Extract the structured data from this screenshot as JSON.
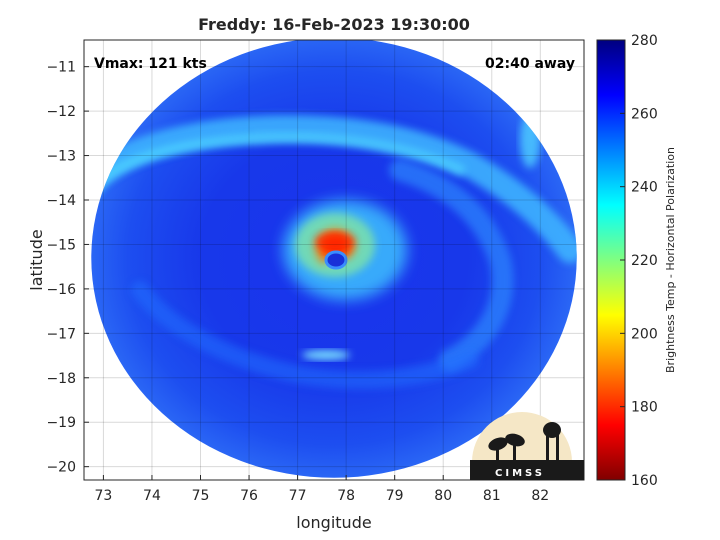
{
  "chart_data": {
    "type": "heatmap",
    "title": "Freddy: 16-Feb-2023 19:30:00",
    "xlabel": "longitude",
    "ylabel": "latitude",
    "xlim": [
      72.6,
      82.9
    ],
    "ylim": [
      -20.3,
      -10.4
    ],
    "x_ticks": [
      73,
      74,
      75,
      76,
      77,
      78,
      79,
      80,
      81,
      82
    ],
    "y_ticks": [
      -11,
      -12,
      -13,
      -14,
      -15,
      -16,
      -17,
      -18,
      -19,
      -20
    ],
    "grid": true,
    "swath_center": [
      77.75,
      -15.3
    ],
    "swath_radius_deg": [
      5.0,
      4.95
    ],
    "annotations": {
      "vmax": "Vmax: 121 kts",
      "time_offset": "02:40 away"
    },
    "colorbar": {
      "label": "Brightness Temp - Horizontal Polarization",
      "range": [
        160,
        280
      ],
      "ticks": [
        280,
        260,
        240,
        220,
        200,
        180,
        160
      ],
      "colormap": "jet",
      "placement": "right"
    },
    "features": {
      "eye_center": [
        77.8,
        -15.25
      ],
      "eye_tb": 255,
      "eyewall_min_tb": 175,
      "background_tb": 262
    }
  },
  "logo": {
    "text": "CIMSS"
  },
  "colors": {
    "jet_stops": [
      "#000080",
      "#0000ff",
      "#0080ff",
      "#00ffff",
      "#80ff80",
      "#ffff00",
      "#ff8000",
      "#ff0000",
      "#800000"
    ],
    "logo_bg": "#f5e7c6",
    "logo_fg": "#1a1a1a"
  }
}
